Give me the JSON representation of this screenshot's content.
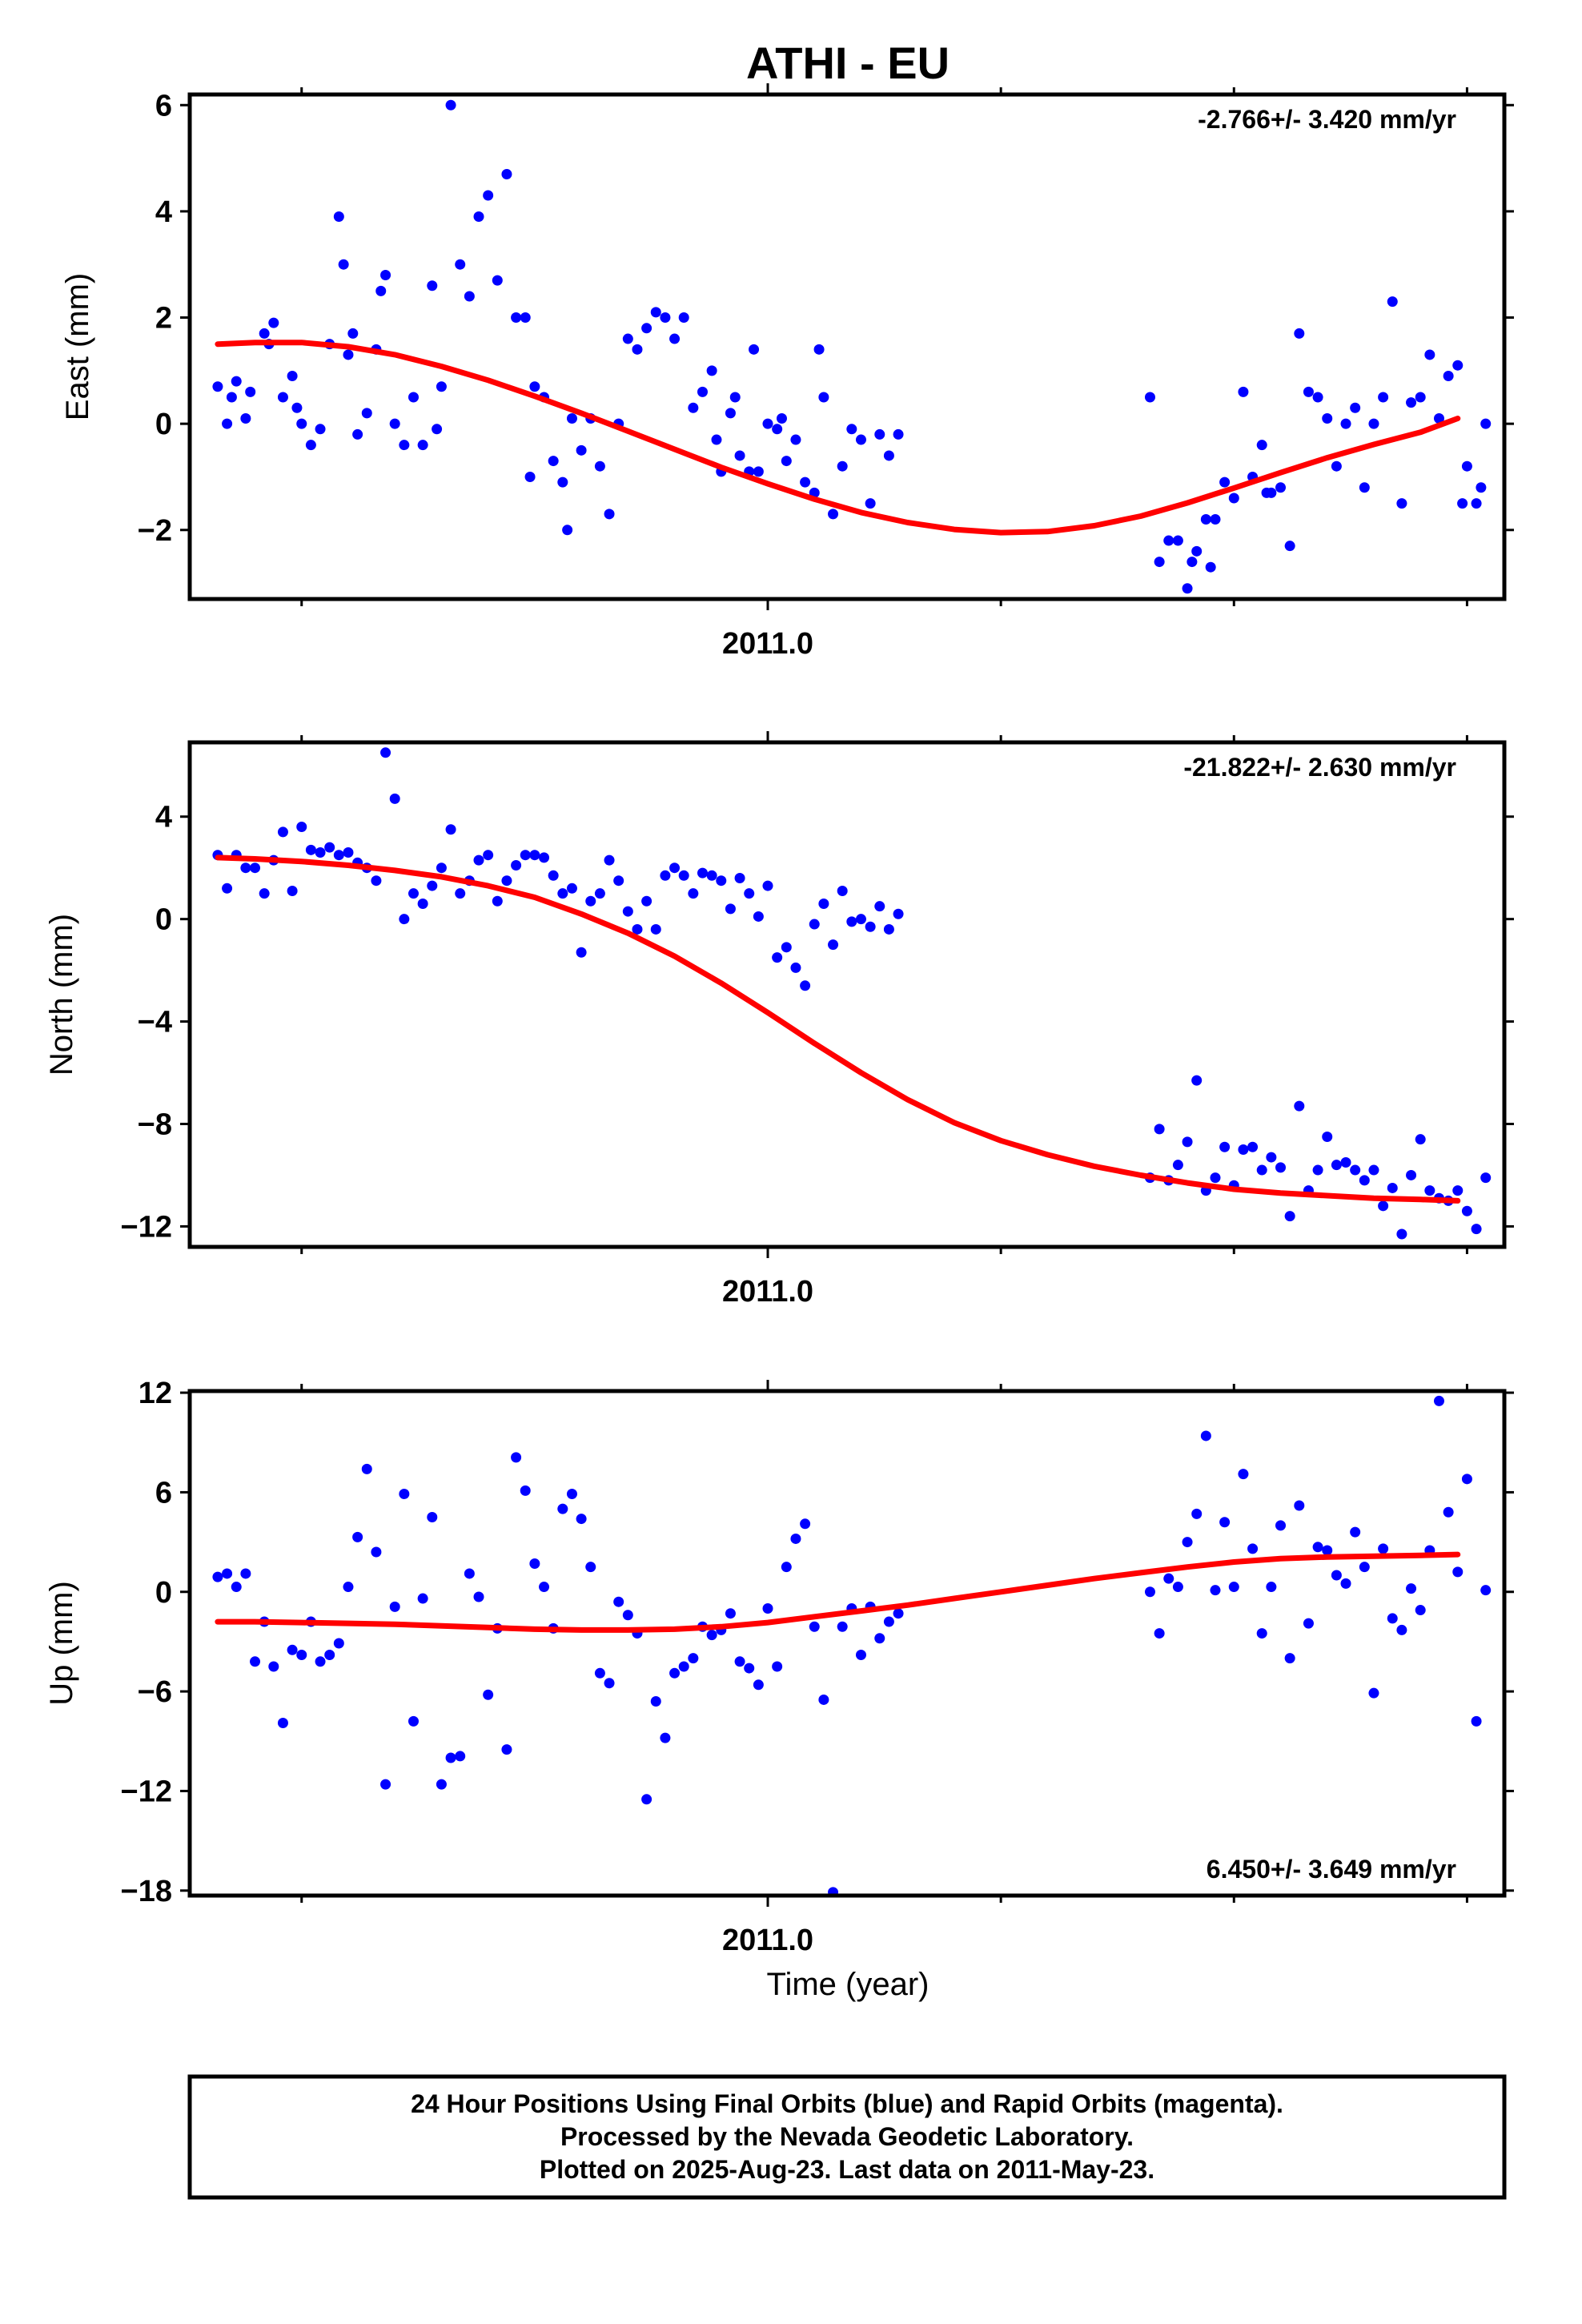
{
  "chart_title": "ATHI - EU",
  "x_axis_label": "Time (year)",
  "footer": {
    "lines": [
      "24 Hour Positions Using Final Orbits (blue) and Rapid Orbits (magenta).",
      "Processed by the Nevada Geodetic Laboratory.",
      "Plotted on 2025-Aug-23. Last data on 2011-May-23."
    ]
  },
  "colors": {
    "final_orbits": "#0000ff",
    "fit_line": "#ff0000",
    "frame": "#000000",
    "background": "#ffffff"
  },
  "chart_data": [
    {
      "type": "scatter",
      "ylabel": "East (mm)",
      "annotation": "-2.766+/- 3.420 mm/yr",
      "annotation_position": "top-right",
      "xlim": [
        2010.38,
        2011.79
      ],
      "ylim": [
        -3.3,
        6.2
      ],
      "yticks": [
        -2,
        0,
        2,
        4,
        6
      ],
      "xticks_major": [
        2011.0
      ],
      "xtick_labels": [
        "2011.0"
      ],
      "xticks_minor": [
        2010.5,
        2011.25,
        2011.5,
        2011.75
      ],
      "grid": false,
      "series": [
        {
          "x": [
            2010.41,
            2010.42,
            2010.425,
            2010.43,
            2010.44,
            2010.445,
            2010.46,
            2010.465,
            2010.47,
            2010.48,
            2010.49,
            2010.495,
            2010.5,
            2010.51,
            2010.52,
            2010.53,
            2010.54,
            2010.545,
            2010.55,
            2010.555,
            2010.56,
            2010.57,
            2010.58,
            2010.585,
            2010.59,
            2010.6,
            2010.61,
            2010.62,
            2010.63,
            2010.64,
            2010.645,
            2010.65,
            2010.66,
            2010.67,
            2010.68,
            2010.69,
            2010.7,
            2010.71,
            2010.72,
            2010.73,
            2010.74,
            2010.745,
            2010.75,
            2010.76,
            2010.77,
            2010.78,
            2010.785,
            2010.79,
            2010.8,
            2010.81,
            2010.82,
            2010.83,
            2010.84,
            2010.85,
            2010.86,
            2010.87,
            2010.88,
            2010.89,
            2010.9,
            2010.91,
            2010.92,
            2010.93,
            2010.94,
            2010.945,
            2010.95,
            2010.96,
            2010.965,
            2010.97,
            2010.98,
            2010.985,
            2010.99,
            2011.0,
            2011.01,
            2011.015,
            2011.02,
            2011.03,
            2011.04,
            2011.05,
            2011.055,
            2011.06,
            2011.07,
            2011.08,
            2011.09,
            2011.1,
            2011.11,
            2011.12,
            2011.13,
            2011.14
          ],
          "y": [
            0.7,
            0.0,
            0.5,
            0.8,
            0.1,
            0.6,
            1.7,
            1.5,
            1.9,
            0.5,
            0.9,
            0.3,
            0.0,
            -0.4,
            -0.1,
            1.5,
            3.9,
            3.0,
            1.3,
            1.7,
            -0.2,
            0.2,
            1.4,
            2.5,
            2.8,
            0.0,
            -0.4,
            0.5,
            -0.4,
            2.6,
            -0.1,
            0.7,
            6.0,
            3.0,
            2.4,
            3.9,
            4.3,
            2.7,
            4.7,
            2.0,
            2.0,
            -1.0,
            0.7,
            0.5,
            -0.7,
            -1.1,
            -2.0,
            0.1,
            -0.5,
            0.1,
            -0.8,
            -1.7,
            0.0,
            1.6,
            1.4,
            1.8,
            2.1,
            2.0,
            1.6,
            2.0,
            0.3,
            0.6,
            1.0,
            -0.3,
            -0.9,
            0.2,
            0.5,
            -0.6,
            -0.9,
            1.4,
            -0.9,
            0.0,
            -0.1,
            0.1,
            -0.7,
            -0.3,
            -1.1,
            -1.3,
            1.4,
            0.5,
            -1.7,
            -0.8,
            -0.1,
            -0.3,
            -1.5,
            -0.2,
            -0.6,
            -0.2
          ]
        },
        {
          "x": [
            2011.41,
            2011.42,
            2011.43,
            2011.44,
            2011.45,
            2011.455,
            2011.46,
            2011.47,
            2011.475,
            2011.48,
            2011.49,
            2011.5,
            2011.51,
            2011.52,
            2011.53,
            2011.535,
            2011.54,
            2011.55,
            2011.56,
            2011.57,
            2011.58,
            2011.59,
            2011.6,
            2011.61,
            2011.62,
            2011.63,
            2011.64,
            2011.65,
            2011.66,
            2011.67,
            2011.68,
            2011.69,
            2011.7,
            2011.71,
            2011.72,
            2011.73,
            2011.74,
            2011.745,
            2011.75,
            2011.76,
            2011.765,
            2011.77
          ],
          "y": [
            0.5,
            -2.6,
            -2.2,
            -2.2,
            -3.1,
            -2.6,
            -2.4,
            -1.8,
            -2.7,
            -1.8,
            -1.1,
            -1.4,
            0.6,
            -1.0,
            -0.4,
            -1.3,
            -1.3,
            -1.2,
            -2.3,
            1.7,
            0.6,
            0.5,
            0.1,
            -0.8,
            0.0,
            0.3,
            -1.2,
            0.0,
            0.5,
            2.3,
            -1.5,
            0.4,
            0.5,
            1.3,
            0.1,
            0.9,
            1.1,
            -1.5,
            -0.8,
            -1.5,
            -1.2,
            0.0
          ]
        }
      ],
      "fit": {
        "x": [
          2010.41,
          2010.45,
          2010.5,
          2010.55,
          2010.6,
          2010.65,
          2010.7,
          2010.75,
          2010.8,
          2010.85,
          2010.9,
          2010.95,
          2011.0,
          2011.05,
          2011.1,
          2011.15,
          2011.2,
          2011.25,
          2011.3,
          2011.35,
          2011.4,
          2011.45,
          2011.5,
          2011.55,
          2011.6,
          2011.65,
          2011.7,
          2011.74
        ],
        "y": [
          1.5,
          1.53,
          1.53,
          1.45,
          1.3,
          1.08,
          0.82,
          0.52,
          0.2,
          -0.14,
          -0.48,
          -0.82,
          -1.13,
          -1.42,
          -1.67,
          -1.86,
          -1.99,
          -2.05,
          -2.03,
          -1.92,
          -1.74,
          -1.49,
          -1.21,
          -0.92,
          -0.64,
          -0.39,
          -0.16,
          0.1
        ]
      }
    },
    {
      "type": "scatter",
      "ylabel": "North (mm)",
      "annotation": "-21.822+/- 2.630 mm/yr",
      "annotation_position": "top-right",
      "xlim": [
        2010.38,
        2011.79
      ],
      "ylim": [
        -12.8,
        6.9
      ],
      "yticks": [
        -12,
        -8,
        -4,
        0,
        4
      ],
      "xticks_major": [
        2011.0
      ],
      "xtick_labels": [
        "2011.0"
      ],
      "xticks_minor": [
        2010.5,
        2011.25,
        2011.5,
        2011.75
      ],
      "grid": false,
      "series": [
        {
          "x": [
            2010.41,
            2010.42,
            2010.43,
            2010.44,
            2010.45,
            2010.46,
            2010.47,
            2010.48,
            2010.49,
            2010.5,
            2010.51,
            2010.52,
            2010.53,
            2010.54,
            2010.55,
            2010.56,
            2010.57,
            2010.58,
            2010.59,
            2010.6,
            2010.61,
            2010.62,
            2010.63,
            2010.64,
            2010.65,
            2010.66,
            2010.67,
            2010.68,
            2010.69,
            2010.7,
            2010.71,
            2010.72,
            2010.73,
            2010.74,
            2010.75,
            2010.76,
            2010.77,
            2010.78,
            2010.79,
            2010.8,
            2010.81,
            2010.82,
            2010.83,
            2010.84,
            2010.85,
            2010.86,
            2010.87,
            2010.88,
            2010.89,
            2010.9,
            2010.91,
            2010.92,
            2010.93,
            2010.94,
            2010.95,
            2010.96,
            2010.97,
            2010.98,
            2010.99,
            2011.0,
            2011.01,
            2011.02,
            2011.03,
            2011.04,
            2011.05,
            2011.06,
            2011.07,
            2011.08,
            2011.09,
            2011.1,
            2011.11,
            2011.12,
            2011.13,
            2011.14
          ],
          "y": [
            2.5,
            1.2,
            2.5,
            2.0,
            2.0,
            1.0,
            2.3,
            3.4,
            1.1,
            3.6,
            2.7,
            2.6,
            2.8,
            2.5,
            2.6,
            2.2,
            2.0,
            1.5,
            6.5,
            4.7,
            0.0,
            1.0,
            0.6,
            1.3,
            2.0,
            3.5,
            1.0,
            1.5,
            2.3,
            2.5,
            0.7,
            1.5,
            2.1,
            2.5,
            2.5,
            2.4,
            1.7,
            1.0,
            1.2,
            -1.3,
            0.7,
            1.0,
            2.3,
            1.5,
            0.3,
            -0.4,
            0.7,
            -0.4,
            1.7,
            2.0,
            1.7,
            1.0,
            1.8,
            1.7,
            1.5,
            0.4,
            1.6,
            1.0,
            0.1,
            1.3,
            -1.5,
            -1.1,
            -1.9,
            -2.6,
            -0.2,
            0.6,
            -1.0,
            1.1,
            -0.1,
            0.0,
            -0.3,
            0.5,
            -0.4,
            0.2
          ]
        },
        {
          "x": [
            2011.41,
            2011.42,
            2011.43,
            2011.44,
            2011.45,
            2011.46,
            2011.47,
            2011.48,
            2011.49,
            2011.5,
            2011.51,
            2011.52,
            2011.53,
            2011.54,
            2011.55,
            2011.56,
            2011.57,
            2011.58,
            2011.59,
            2011.6,
            2011.61,
            2011.62,
            2011.63,
            2011.64,
            2011.65,
            2011.66,
            2011.67,
            2011.68,
            2011.69,
            2011.7,
            2011.71,
            2011.72,
            2011.73,
            2011.74,
            2011.75,
            2011.76,
            2011.77
          ],
          "y": [
            -10.1,
            -8.2,
            -10.2,
            -9.6,
            -8.7,
            -6.3,
            -10.6,
            -10.1,
            -8.9,
            -10.4,
            -9.0,
            -8.9,
            -9.8,
            -9.3,
            -9.7,
            -11.6,
            -7.3,
            -10.6,
            -9.8,
            -8.5,
            -9.6,
            -9.5,
            -9.8,
            -10.2,
            -9.8,
            -11.2,
            -10.5,
            -12.3,
            -10.0,
            -8.6,
            -10.6,
            -10.9,
            -11.0,
            -10.6,
            -11.4,
            -12.1,
            -10.1
          ]
        }
      ],
      "fit": {
        "x": [
          2010.41,
          2010.45,
          2010.5,
          2010.55,
          2010.6,
          2010.65,
          2010.7,
          2010.75,
          2010.8,
          2010.85,
          2010.9,
          2010.95,
          2011.0,
          2011.05,
          2011.1,
          2011.15,
          2011.2,
          2011.25,
          2011.3,
          2011.35,
          2011.4,
          2011.45,
          2011.5,
          2011.55,
          2011.6,
          2011.65,
          2011.7,
          2011.74
        ],
        "y": [
          2.4,
          2.35,
          2.25,
          2.1,
          1.9,
          1.65,
          1.3,
          0.85,
          0.2,
          -0.55,
          -1.45,
          -2.5,
          -3.65,
          -4.85,
          -6.0,
          -7.05,
          -7.95,
          -8.65,
          -9.2,
          -9.65,
          -10.0,
          -10.3,
          -10.55,
          -10.7,
          -10.8,
          -10.9,
          -10.95,
          -11.0
        ]
      }
    },
    {
      "type": "scatter",
      "ylabel": "Up (mm)",
      "annotation": "6.450+/- 3.649 mm/yr",
      "annotation_position": "bottom-right",
      "xlim": [
        2010.38,
        2011.79
      ],
      "ylim": [
        -18.3,
        12.1
      ],
      "yticks": [
        -18,
        -12,
        -6,
        0,
        6,
        12
      ],
      "xticks_major": [
        2011.0
      ],
      "xtick_labels": [
        "2011.0"
      ],
      "xticks_minor": [
        2010.5,
        2011.25,
        2011.5,
        2011.75
      ],
      "grid": false,
      "series": [
        {
          "x": [
            2010.41,
            2010.42,
            2010.43,
            2010.44,
            2010.45,
            2010.46,
            2010.47,
            2010.48,
            2010.49,
            2010.5,
            2010.51,
            2010.52,
            2010.53,
            2010.54,
            2010.55,
            2010.56,
            2010.57,
            2010.58,
            2010.59,
            2010.6,
            2010.61,
            2010.62,
            2010.63,
            2010.64,
            2010.65,
            2010.66,
            2010.67,
            2010.68,
            2010.69,
            2010.7,
            2010.71,
            2010.72,
            2010.73,
            2010.74,
            2010.75,
            2010.76,
            2010.77,
            2010.78,
            2010.79,
            2010.8,
            2010.81,
            2010.82,
            2010.83,
            2010.84,
            2010.85,
            2010.86,
            2010.87,
            2010.88,
            2010.89,
            2010.9,
            2010.91,
            2010.92,
            2010.93,
            2010.94,
            2010.95,
            2010.96,
            2010.97,
            2010.98,
            2010.99,
            2011.0,
            2011.01,
            2011.02,
            2011.03,
            2011.04,
            2011.05,
            2011.06,
            2011.07,
            2011.08,
            2011.09,
            2011.1,
            2011.11,
            2011.12,
            2011.13,
            2011.14
          ],
          "y": [
            0.9,
            1.1,
            0.3,
            1.1,
            -4.2,
            -1.8,
            -4.5,
            -7.9,
            -3.5,
            -3.8,
            -1.8,
            -4.2,
            -3.8,
            -3.1,
            0.3,
            3.3,
            7.4,
            2.4,
            -11.6,
            -0.9,
            5.9,
            -7.8,
            -0.4,
            4.5,
            -11.6,
            -10.0,
            -9.9,
            1.1,
            -0.3,
            -6.2,
            -2.2,
            -9.5,
            8.1,
            6.1,
            1.7,
            0.3,
            -2.2,
            5.0,
            5.9,
            4.4,
            1.5,
            -4.9,
            -5.5,
            -0.6,
            -1.4,
            -2.5,
            -12.5,
            -6.6,
            -8.8,
            -4.9,
            -4.5,
            -4.0,
            -2.1,
            -2.6,
            -2.3,
            -1.3,
            -4.2,
            -4.6,
            -5.6,
            -1.0,
            -4.5,
            1.5,
            3.2,
            4.1,
            -2.1,
            -6.5,
            -18.1,
            -2.1,
            -1.0,
            -3.8,
            -0.9,
            -2.8,
            -1.8,
            -1.3
          ]
        },
        {
          "x": [
            2011.41,
            2011.42,
            2011.43,
            2011.44,
            2011.45,
            2011.46,
            2011.47,
            2011.48,
            2011.49,
            2011.5,
            2011.51,
            2011.52,
            2011.53,
            2011.54,
            2011.55,
            2011.56,
            2011.57,
            2011.58,
            2011.59,
            2011.6,
            2011.61,
            2011.62,
            2011.63,
            2011.64,
            2011.65,
            2011.66,
            2011.67,
            2011.68,
            2011.69,
            2011.7,
            2011.71,
            2011.72,
            2011.73,
            2011.74,
            2011.75,
            2011.76,
            2011.77
          ],
          "y": [
            0.0,
            -2.5,
            0.8,
            0.3,
            3.0,
            4.7,
            9.4,
            0.1,
            4.2,
            0.3,
            7.1,
            2.6,
            -2.5,
            0.3,
            4.0,
            -4.0,
            5.2,
            -1.9,
            2.7,
            2.5,
            1.0,
            0.5,
            3.6,
            1.5,
            -6.1,
            2.6,
            -1.6,
            -2.3,
            0.2,
            -1.1,
            2.5,
            11.5,
            4.8,
            1.2,
            6.8,
            -7.8,
            0.1
          ]
        }
      ],
      "fit": {
        "x": [
          2010.41,
          2010.45,
          2010.5,
          2010.55,
          2010.6,
          2010.65,
          2010.7,
          2010.75,
          2010.8,
          2010.85,
          2010.9,
          2010.95,
          2011.0,
          2011.05,
          2011.1,
          2011.15,
          2011.2,
          2011.25,
          2011.3,
          2011.35,
          2011.4,
          2011.45,
          2011.5,
          2011.55,
          2011.6,
          2011.65,
          2011.7,
          2011.74
        ],
        "y": [
          -1.8,
          -1.8,
          -1.85,
          -1.9,
          -1.95,
          -2.05,
          -2.15,
          -2.25,
          -2.3,
          -2.3,
          -2.25,
          -2.1,
          -1.85,
          -1.5,
          -1.15,
          -0.8,
          -0.4,
          0.0,
          0.4,
          0.8,
          1.15,
          1.5,
          1.8,
          2.0,
          2.1,
          2.15,
          2.2,
          2.25
        ]
      }
    }
  ]
}
